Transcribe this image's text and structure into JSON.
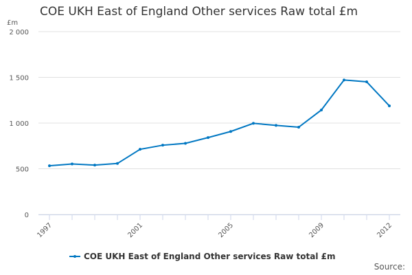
{
  "chart_data": {
    "type": "line",
    "title": "COE UKH East of England Other services Raw total £m",
    "ylabel": "£m",
    "xlabel": "",
    "x": [
      1997,
      1998,
      1999,
      2000,
      2001,
      2002,
      2003,
      2004,
      2005,
      2006,
      2007,
      2008,
      2009,
      2010,
      2011,
      2012
    ],
    "series": [
      {
        "name": "COE UKH East of England Other services Raw total £m",
        "values": [
          533,
          553,
          540,
          558,
          713,
          758,
          778,
          841,
          908,
          997,
          975,
          955,
          1143,
          1471,
          1451,
          1188
        ],
        "color": "#0077c2"
      }
    ],
    "ylim": [
      0,
      2000
    ],
    "yticks": [
      0,
      500,
      1000,
      1500,
      2000
    ],
    "ytick_labels": [
      "0",
      "500",
      "1 000",
      "1 500",
      "2 000"
    ],
    "xtick_labels": [
      "1997",
      "2001",
      "2005",
      "2009",
      "2012"
    ],
    "grid": true,
    "legend_position": "bottom",
    "source_label": "Source:"
  }
}
